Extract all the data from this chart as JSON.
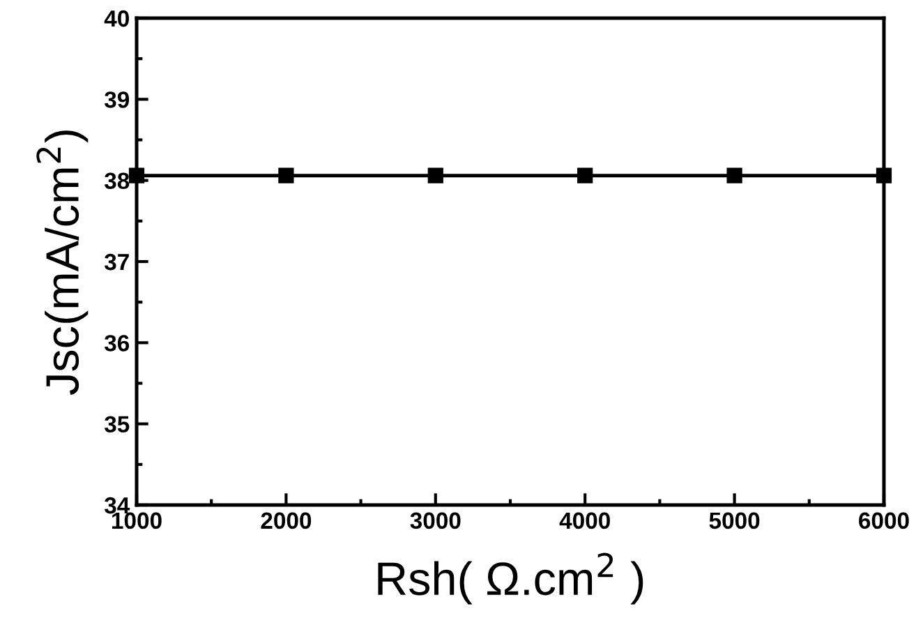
{
  "chart_data": {
    "type": "line",
    "xlabel": "Rsh( Ω.cm$^{2}$ )",
    "ylabel": "Jsc(mA/cm$^{2}$)",
    "x": [
      1000,
      2000,
      3000,
      4000,
      5000,
      6000
    ],
    "series": [
      {
        "color": "#000000",
        "values": [
          38.06,
          38.06,
          38.06,
          38.06,
          38.06,
          38.06
        ]
      }
    ],
    "xlim": [
      1000,
      6000
    ],
    "xticks": [
      1000,
      2000,
      3000,
      4000,
      5000,
      6000
    ],
    "ylim": [
      34,
      40
    ],
    "yticks": [
      34,
      35,
      36,
      37,
      38,
      39,
      40
    ],
    "marker": "square",
    "line_style": "solid",
    "grid": false,
    "legend": false
  }
}
